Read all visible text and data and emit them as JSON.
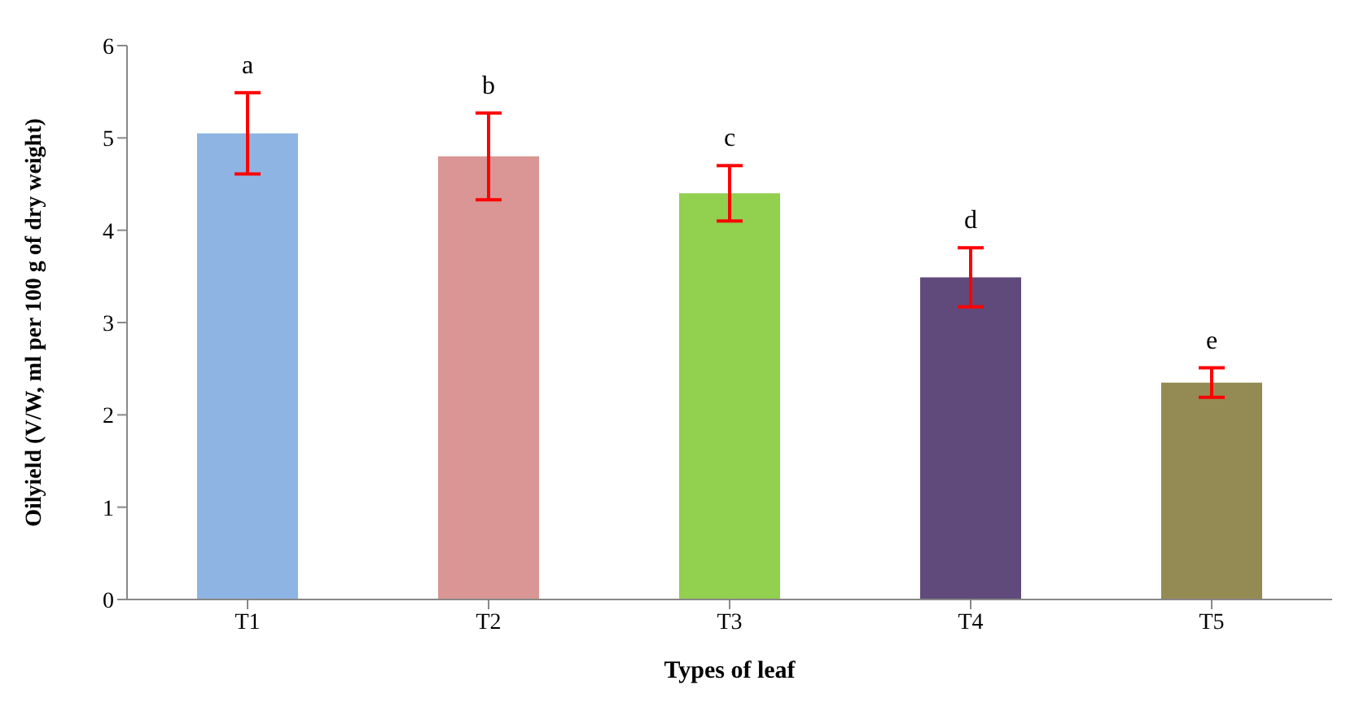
{
  "chart_data": {
    "type": "bar",
    "xlabel": "Types of leaf",
    "ylabel": "Oilyield (V/W, ml per 100 g of dry weight)",
    "categories": [
      "T1",
      "T2",
      "T3",
      "T4",
      "T5"
    ],
    "values": [
      5.05,
      4.8,
      4.4,
      3.49,
      2.35
    ],
    "colors": [
      "#8eb4e3",
      "#d99694",
      "#92d050",
      "#604a7b",
      "#948a54"
    ],
    "errors": [
      0.44,
      0.47,
      0.3,
      0.32,
      0.16
    ],
    "ylim": [
      0,
      6
    ],
    "yticks": [
      0,
      1,
      2,
      3,
      4,
      5,
      6
    ],
    "grid": false,
    "legend": false,
    "annotations": [
      "a",
      "b",
      "c",
      "d",
      "e"
    ]
  }
}
